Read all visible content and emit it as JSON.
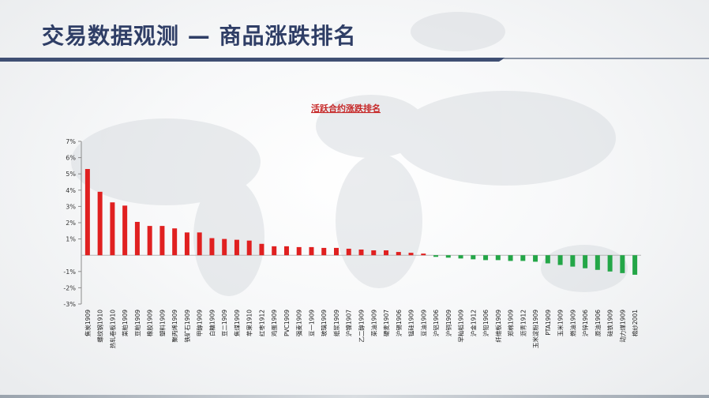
{
  "page": {
    "title": "交易数据观测 — 商品涨跌排名"
  },
  "colors": {
    "title": "#2f3e66",
    "rule": "#3f4f73",
    "up": "#e02020",
    "down": "#23a647"
  },
  "chart_data": {
    "type": "bar",
    "title": "活跃合约涨跌排名",
    "xlabel": "",
    "ylabel": "",
    "ylim": [
      -3,
      7
    ],
    "yticks": [
      7,
      6,
      5,
      4,
      3,
      2,
      1,
      -1,
      -2,
      -3
    ],
    "ytick_labels": [
      "7%",
      "6%",
      "5%",
      "4%",
      "3%",
      "2%",
      "1%",
      "-1%",
      "-2%",
      "-3%"
    ],
    "baseline_label_value": 0,
    "grid": false,
    "legend": "none",
    "categories": [
      "焦炭1909",
      "螺纹钢1910",
      "热轧卷板1910",
      "菜粕1909",
      "豆粕1909",
      "橡胶1909",
      "塑料1909",
      "聚丙烯1909",
      "铁矿石1909",
      "甲醇1909",
      "白糖1909",
      "豆二1909",
      "焦煤1909",
      "苹果1910",
      "红枣1912",
      "鸡蛋1909",
      "PVC1909",
      "强麦1909",
      "豆一1909",
      "玻璃1909",
      "纸浆1909",
      "沪镍1907",
      "乙二醇1909",
      "菜油1909",
      "硬麦1907",
      "沪锡1906",
      "锰硅1909",
      "豆油1909",
      "沪铝1906",
      "沪铜1909",
      "早籼稻1909",
      "沪金1912",
      "沪铅1906",
      "纤维板1909",
      "郑棉1909",
      "沥青1912",
      "玉米淀粉1909",
      "PTA1909",
      "玉米1909",
      "燃油1909",
      "沪锌1906",
      "原油1906",
      "硅铁1909",
      "动力煤1909",
      "棉纱2001"
    ],
    "values": [
      5.3,
      3.9,
      3.25,
      3.05,
      2.05,
      1.8,
      1.8,
      1.65,
      1.4,
      1.4,
      1.05,
      1.0,
      0.95,
      0.9,
      0.7,
      0.55,
      0.55,
      0.5,
      0.5,
      0.45,
      0.45,
      0.4,
      0.35,
      0.3,
      0.3,
      0.2,
      0.15,
      0.1,
      -0.1,
      -0.15,
      -0.2,
      -0.25,
      -0.3,
      -0.3,
      -0.35,
      -0.35,
      -0.4,
      -0.5,
      -0.6,
      -0.7,
      -0.8,
      -0.9,
      -1.0,
      -1.1,
      -1.2
    ]
  }
}
